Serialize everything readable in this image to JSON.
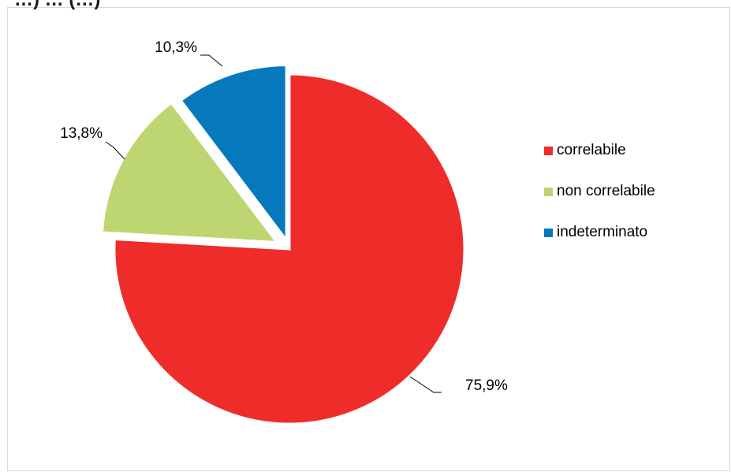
{
  "chart_data": {
    "type": "pie",
    "title_partial": "…) … (…)",
    "series": [
      {
        "slices": [
          {
            "label": "correlabile",
            "value": 75.9,
            "data_label": "75,9%",
            "color": "#ee2d2b"
          },
          {
            "label": "non correlabile",
            "value": 13.8,
            "data_label": "13,8%",
            "color": "#bdd672"
          },
          {
            "label": "indeterminato",
            "value": 10.3,
            "data_label": "10,3%",
            "color": "#0679bd"
          }
        ]
      }
    ],
    "legend_position": "right",
    "exploded_slices": true
  }
}
